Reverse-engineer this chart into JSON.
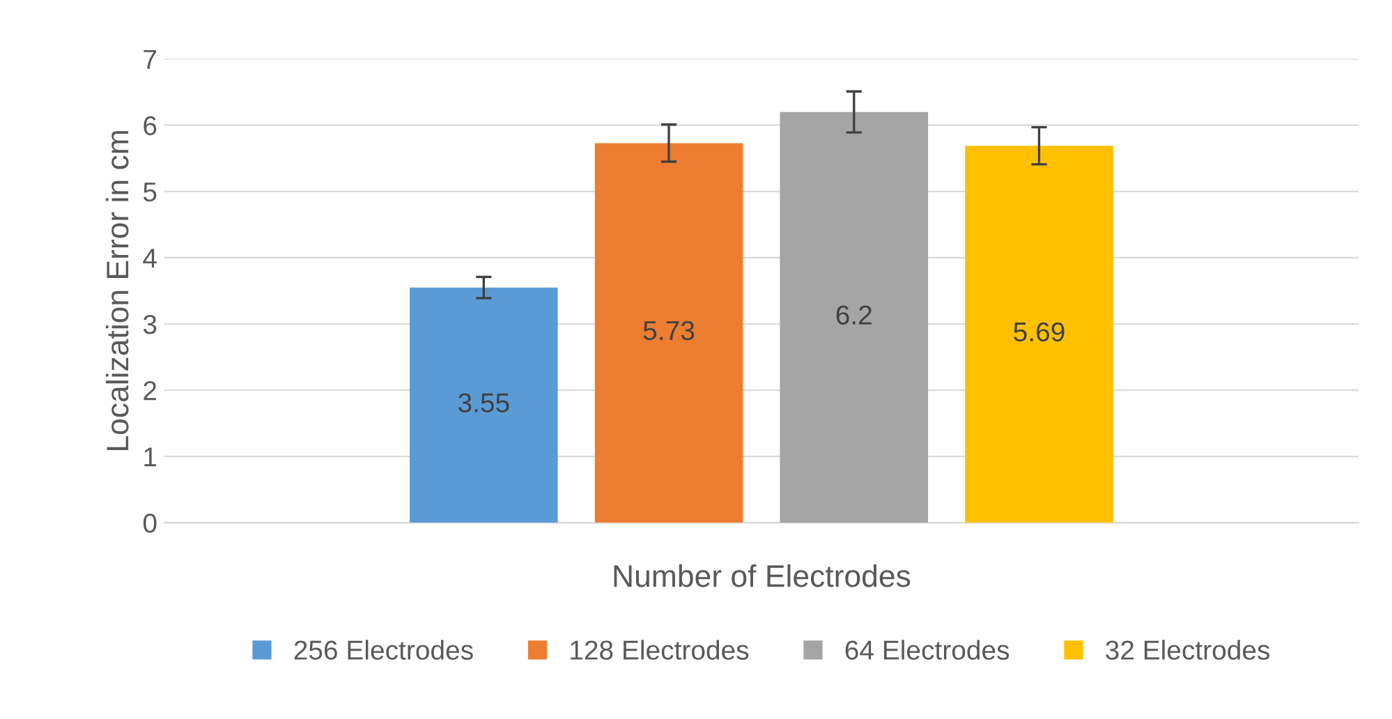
{
  "chart_data": {
    "type": "bar",
    "xlabel": "Number of Electrodes",
    "ylabel": "Localization Error in cm",
    "categories": [
      null
    ],
    "series": [
      {
        "name": "256 Electrodes",
        "color": "#5b9bd5",
        "values": [
          3.55
        ],
        "errors": [
          0.16
        ]
      },
      {
        "name": "128 Electrodes",
        "color": "#ed7d31",
        "values": [
          5.73
        ],
        "errors": [
          0.28
        ]
      },
      {
        "name": "64 Electrodes",
        "color": "#a5a5a5",
        "values": [
          6.2
        ],
        "errors": [
          0.31
        ]
      },
      {
        "name": "32 Electrodes",
        "color": "#ffc000",
        "values": [
          5.69
        ],
        "errors": [
          0.28
        ]
      }
    ],
    "ylim": [
      0,
      7
    ],
    "yticks": [
      0,
      1,
      2,
      3,
      4,
      5,
      6,
      7
    ],
    "grid": "y",
    "legend": "bottom",
    "data_labels": true
  }
}
